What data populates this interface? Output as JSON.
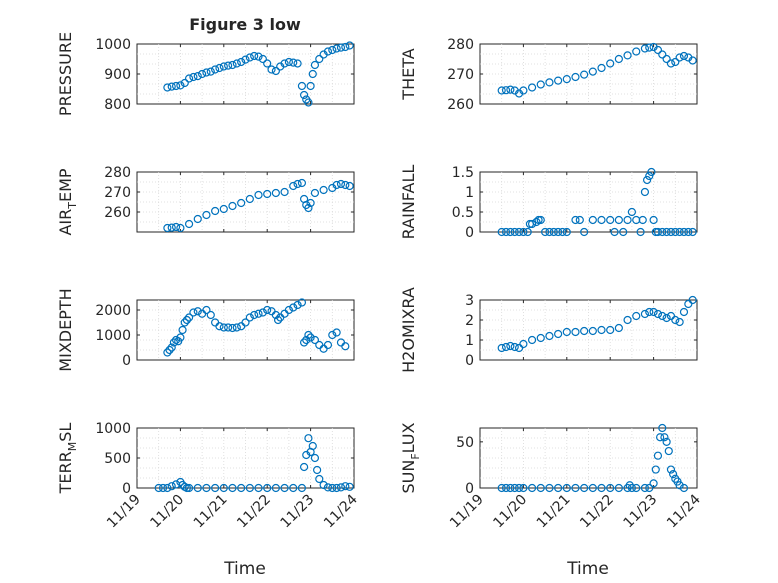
{
  "figure": {
    "title": "Figure 3 low",
    "marker_color": "#0072BD",
    "x_tick_labels": [
      "11/19",
      "11/20",
      "11/21",
      "11/22",
      "11/23",
      "11/24"
    ],
    "xlabel": "Time"
  },
  "chart_data": [
    {
      "type": "scatter",
      "ylabel": "PRESSURE",
      "ylabel_sub": "",
      "ylabel_suffix": "",
      "xlim": [
        19.0,
        24.0
      ],
      "ylim": [
        800,
        1000
      ],
      "yticks": [
        800,
        900,
        1000
      ],
      "grid": true,
      "x": [
        19.7,
        19.8,
        19.9,
        20.0,
        20.1,
        20.2,
        20.3,
        20.4,
        20.5,
        20.6,
        20.7,
        20.8,
        20.9,
        21.0,
        21.1,
        21.2,
        21.3,
        21.4,
        21.5,
        21.6,
        21.7,
        21.8,
        21.9,
        22.0,
        22.1,
        22.2,
        22.3,
        22.4,
        22.5,
        22.6,
        22.7,
        22.8,
        22.85,
        22.9,
        22.95,
        23.0,
        23.05,
        23.1,
        23.2,
        23.3,
        23.4,
        23.5,
        23.6,
        23.7,
        23.8,
        23.9
      ],
      "y": [
        855,
        858,
        860,
        862,
        870,
        885,
        890,
        893,
        900,
        905,
        908,
        915,
        920,
        925,
        928,
        930,
        935,
        940,
        948,
        955,
        960,
        958,
        950,
        935,
        915,
        910,
        925,
        935,
        940,
        938,
        935,
        860,
        830,
        815,
        805,
        860,
        900,
        930,
        950,
        965,
        975,
        980,
        985,
        988,
        990,
        995
      ]
    },
    {
      "type": "scatter",
      "ylabel": "THETA",
      "ylabel_sub": "",
      "ylabel_suffix": "",
      "xlim": [
        19.0,
        24.0
      ],
      "ylim": [
        260,
        280
      ],
      "yticks": [
        260,
        270,
        280
      ],
      "grid": true,
      "x": [
        19.5,
        19.6,
        19.7,
        19.8,
        19.9,
        20.0,
        20.2,
        20.4,
        20.6,
        20.8,
        21.0,
        21.2,
        21.4,
        21.6,
        21.8,
        22.0,
        22.2,
        22.4,
        22.6,
        22.8,
        22.9,
        23.0,
        23.1,
        23.2,
        23.3,
        23.4,
        23.5,
        23.6,
        23.7,
        23.8,
        23.9
      ],
      "y": [
        264.5,
        264.6,
        264.8,
        264.5,
        263.5,
        264.5,
        265.5,
        266.5,
        267.2,
        267.8,
        268.3,
        269.0,
        269.8,
        270.8,
        272.0,
        273.5,
        275.0,
        276.2,
        277.5,
        278.5,
        278.8,
        279.0,
        278.0,
        276.5,
        275.0,
        273.5,
        274.0,
        275.5,
        276.0,
        275.5,
        274.5
      ]
    },
    {
      "type": "scatter",
      "ylabel": "AIR",
      "ylabel_sub": "T",
      "ylabel_suffix": "EMP",
      "xlim": [
        19.0,
        24.0
      ],
      "ylim": [
        250,
        280
      ],
      "yticks": [
        260,
        270,
        280
      ],
      "grid": true,
      "x": [
        19.7,
        19.8,
        19.9,
        20.0,
        20.2,
        20.4,
        20.6,
        20.8,
        21.0,
        21.2,
        21.4,
        21.6,
        21.8,
        22.0,
        22.2,
        22.4,
        22.6,
        22.7,
        22.8,
        22.85,
        22.9,
        22.95,
        23.0,
        23.1,
        23.3,
        23.5,
        23.6,
        23.7,
        23.8,
        23.9
      ],
      "y": [
        252.0,
        252.2,
        252.5,
        252.0,
        254.0,
        256.5,
        258.5,
        260.5,
        261.5,
        263.0,
        264.5,
        266.5,
        268.5,
        269.0,
        269.5,
        270.0,
        273.0,
        274.0,
        274.5,
        266.5,
        263.5,
        262.0,
        264.5,
        269.5,
        271.0,
        272.0,
        273.5,
        274.0,
        273.5,
        273.0
      ]
    },
    {
      "type": "scatter",
      "ylabel": "RAINFALL",
      "ylabel_sub": "",
      "ylabel_suffix": "",
      "xlim": [
        19.0,
        24.0
      ],
      "ylim": [
        0,
        1.5
      ],
      "yticks": [
        0,
        0.5,
        1,
        1.5
      ],
      "grid": true,
      "x": [
        19.5,
        19.6,
        19.7,
        19.8,
        19.9,
        20.0,
        20.1,
        20.15,
        20.2,
        20.3,
        20.35,
        20.4,
        20.5,
        20.6,
        20.7,
        20.8,
        20.9,
        21.0,
        21.2,
        21.3,
        21.4,
        21.6,
        21.8,
        22.0,
        22.1,
        22.2,
        22.3,
        22.4,
        22.5,
        22.6,
        22.7,
        22.75,
        22.8,
        22.85,
        22.9,
        22.95,
        23.0,
        23.05,
        23.1,
        23.2,
        23.3,
        23.4,
        23.5,
        23.6,
        23.7,
        23.8,
        23.9
      ],
      "y": [
        0,
        0,
        0,
        0,
        0,
        0,
        0,
        0.2,
        0.2,
        0.25,
        0.3,
        0.3,
        0,
        0,
        0,
        0,
        0,
        0,
        0.3,
        0.3,
        0,
        0.3,
        0.3,
        0.3,
        0,
        0.3,
        0,
        0.3,
        0.5,
        0.3,
        0,
        0.3,
        1.0,
        1.3,
        1.4,
        1.5,
        0.3,
        0,
        0,
        0,
        0,
        0,
        0,
        0,
        0,
        0,
        0
      ]
    },
    {
      "type": "scatter",
      "ylabel": "MIXDEPTH",
      "ylabel_sub": "",
      "ylabel_suffix": "",
      "xlim": [
        19.0,
        24.0
      ],
      "ylim": [
        0,
        2400
      ],
      "yticks": [
        0,
        1000,
        2000
      ],
      "grid": true,
      "x": [
        19.7,
        19.75,
        19.8,
        19.85,
        19.9,
        19.95,
        20.0,
        20.05,
        20.1,
        20.15,
        20.2,
        20.3,
        20.4,
        20.5,
        20.6,
        20.7,
        20.8,
        20.9,
        21.0,
        21.1,
        21.2,
        21.3,
        21.4,
        21.5,
        21.6,
        21.7,
        21.8,
        21.9,
        22.0,
        22.1,
        22.2,
        22.25,
        22.3,
        22.4,
        22.5,
        22.6,
        22.7,
        22.8,
        22.85,
        22.9,
        22.95,
        23.0,
        23.1,
        23.2,
        23.3,
        23.4,
        23.5,
        23.6,
        23.7,
        23.8
      ],
      "y": [
        300,
        400,
        500,
        700,
        800,
        750,
        900,
        1200,
        1500,
        1600,
        1700,
        1900,
        1950,
        1850,
        2000,
        1800,
        1500,
        1350,
        1300,
        1300,
        1280,
        1300,
        1350,
        1500,
        1700,
        1800,
        1850,
        1900,
        2000,
        1950,
        1800,
        1600,
        1700,
        1850,
        2000,
        2100,
        2200,
        2300,
        700,
        800,
        1000,
        900,
        800,
        600,
        450,
        600,
        1000,
        1100,
        700,
        550
      ]
    },
    {
      "type": "scatter",
      "ylabel": "H2OMIXRA",
      "ylabel_sub": "",
      "ylabel_suffix": "",
      "xlim": [
        19.0,
        24.0
      ],
      "ylim": [
        0,
        3
      ],
      "yticks": [
        0,
        1,
        2,
        3
      ],
      "grid": true,
      "x": [
        19.5,
        19.6,
        19.7,
        19.8,
        19.9,
        20.0,
        20.2,
        20.4,
        20.6,
        20.8,
        21.0,
        21.2,
        21.4,
        21.6,
        21.8,
        22.0,
        22.2,
        22.4,
        22.6,
        22.8,
        22.9,
        23.0,
        23.1,
        23.2,
        23.3,
        23.4,
        23.5,
        23.6,
        23.7,
        23.8,
        23.9
      ],
      "y": [
        0.6,
        0.65,
        0.7,
        0.65,
        0.6,
        0.8,
        1.0,
        1.1,
        1.2,
        1.3,
        1.4,
        1.4,
        1.45,
        1.45,
        1.5,
        1.5,
        1.6,
        2.0,
        2.2,
        2.3,
        2.4,
        2.4,
        2.3,
        2.2,
        2.1,
        2.2,
        2.0,
        1.9,
        2.4,
        2.8,
        3.0
      ]
    },
    {
      "type": "scatter",
      "ylabel": "TERR",
      "ylabel_sub": "M",
      "ylabel_suffix": "SL",
      "xlim": [
        19.0,
        24.0
      ],
      "ylim": [
        0,
        1000
      ],
      "yticks": [
        0,
        500,
        1000
      ],
      "grid": true,
      "x": [
        19.5,
        19.6,
        19.7,
        19.8,
        19.9,
        20.0,
        20.05,
        20.1,
        20.15,
        20.2,
        20.4,
        20.6,
        20.8,
        21.0,
        21.2,
        21.4,
        21.6,
        21.8,
        22.0,
        22.2,
        22.4,
        22.6,
        22.8,
        22.85,
        22.9,
        22.95,
        23.0,
        23.05,
        23.1,
        23.15,
        23.2,
        23.3,
        23.4,
        23.5,
        23.6,
        23.7,
        23.8,
        23.9
      ],
      "y": [
        0,
        0,
        0,
        30,
        60,
        100,
        50,
        20,
        0,
        0,
        0,
        0,
        0,
        0,
        0,
        0,
        0,
        0,
        0,
        0,
        0,
        0,
        0,
        350,
        550,
        830,
        600,
        700,
        500,
        300,
        150,
        50,
        10,
        0,
        0,
        10,
        30,
        20
      ]
    },
    {
      "type": "scatter",
      "ylabel": "SUN",
      "ylabel_sub": "F",
      "ylabel_suffix": "LUX",
      "xlim": [
        19.0,
        24.0
      ],
      "ylim": [
        0,
        65
      ],
      "yticks": [
        0,
        50
      ],
      "grid": true,
      "x": [
        19.5,
        19.6,
        19.7,
        19.8,
        19.9,
        20.0,
        20.2,
        20.4,
        20.6,
        20.8,
        21.0,
        21.2,
        21.4,
        21.6,
        21.8,
        22.0,
        22.2,
        22.4,
        22.45,
        22.5,
        22.6,
        22.8,
        22.9,
        23.0,
        23.05,
        23.1,
        23.15,
        23.2,
        23.25,
        23.3,
        23.35,
        23.4,
        23.45,
        23.5,
        23.55,
        23.6,
        23.7
      ],
      "y": [
        0,
        0,
        0,
        0,
        0,
        0,
        0,
        0,
        0,
        0,
        0,
        0,
        0,
        0,
        0,
        0,
        0,
        0,
        3,
        0,
        0,
        0,
        0,
        5,
        20,
        35,
        55,
        65,
        55,
        50,
        40,
        20,
        15,
        10,
        7,
        3,
        0
      ]
    }
  ]
}
